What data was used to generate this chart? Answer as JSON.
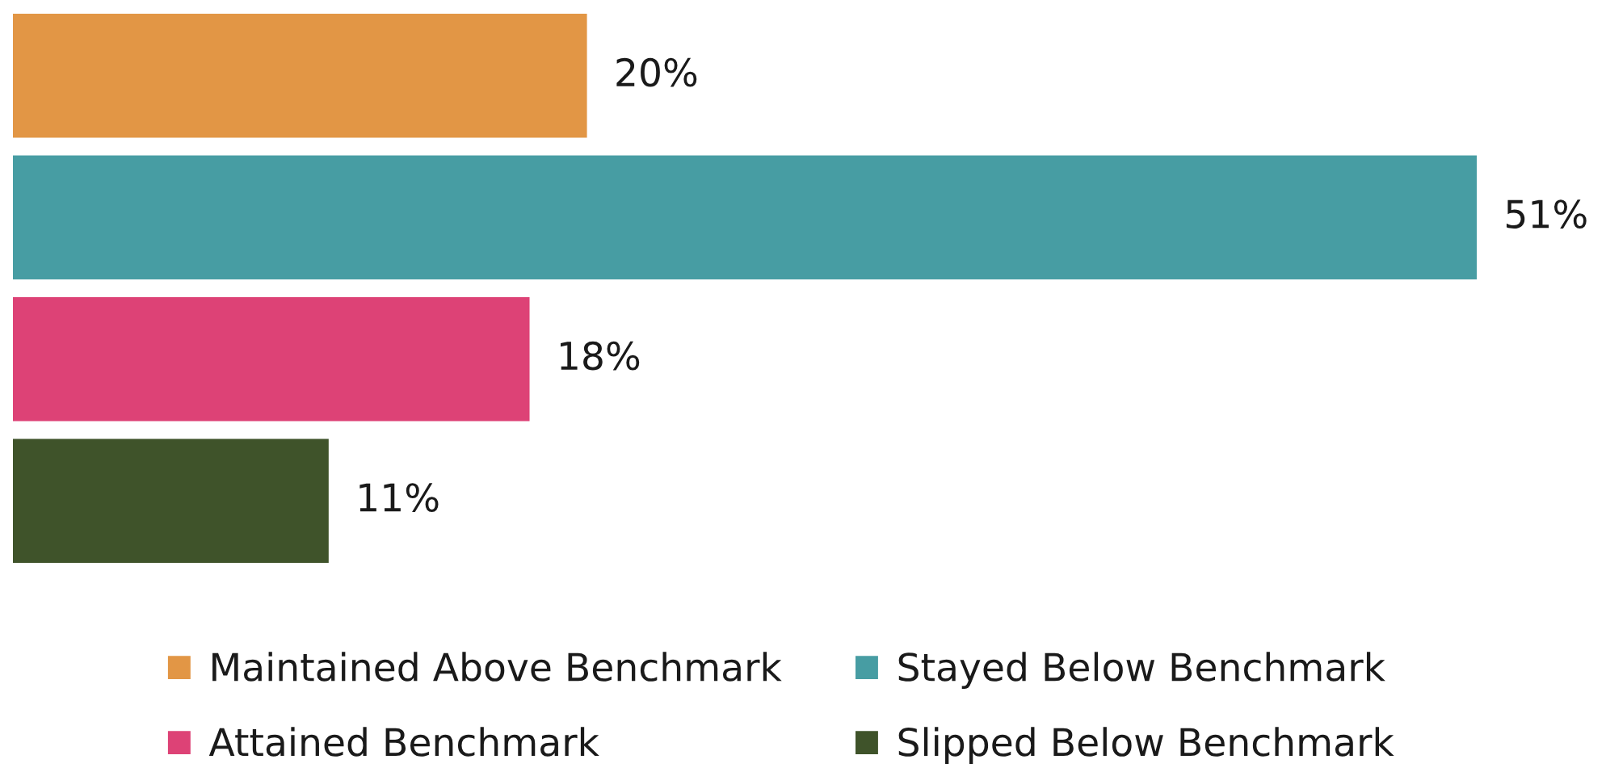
{
  "chart_data": {
    "type": "bar",
    "orientation": "horizontal",
    "stacked": true,
    "categories": [
      null,
      null,
      null,
      null
    ],
    "series": [
      {
        "name": "Maintained Above Benchmark",
        "color": "#e29645",
        "values": [
          20,
          null,
          null,
          null
        ],
        "value_labels": [
          "20%",
          null,
          null,
          null
        ]
      },
      {
        "name": "Stayed Below Benchmark",
        "color": "#479da3",
        "values": [
          null,
          51,
          null,
          null
        ],
        "value_labels": [
          null,
          "51%",
          null,
          null
        ]
      },
      {
        "name": "Attained Benchmark",
        "color": "#dd4276",
        "values": [
          null,
          null,
          18,
          null
        ],
        "value_labels": [
          null,
          null,
          "18%",
          null
        ]
      },
      {
        "name": "Slipped Below Benchmark",
        "color": "#3f532a",
        "values": [
          null,
          null,
          null,
          11
        ],
        "value_labels": [
          null,
          null,
          null,
          "11%"
        ]
      }
    ],
    "legend": "bottom",
    "grid": false,
    "tick_labels": false
  }
}
